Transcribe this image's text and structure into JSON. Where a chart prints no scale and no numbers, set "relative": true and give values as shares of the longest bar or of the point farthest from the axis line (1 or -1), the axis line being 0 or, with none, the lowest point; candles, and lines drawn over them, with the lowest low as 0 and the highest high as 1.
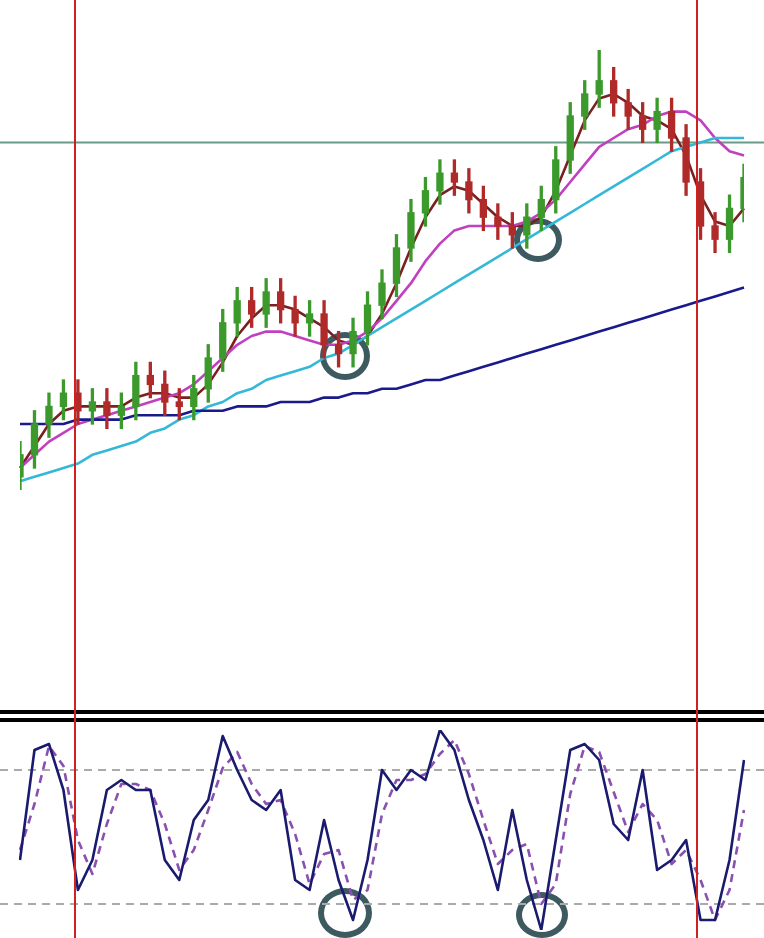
{
  "chart_data": [
    {
      "type": "candlestick",
      "relative": true,
      "categories": [
        null,
        null,
        null,
        null,
        null,
        null,
        null,
        null,
        null,
        null,
        null,
        null,
        null,
        null,
        null,
        null,
        null,
        null,
        null,
        null,
        null,
        null,
        null,
        null,
        null,
        null,
        null,
        null,
        null,
        null,
        null,
        null,
        null,
        null,
        null,
        null,
        null,
        null,
        null,
        null,
        null,
        null,
        null,
        null,
        null,
        null,
        null,
        null,
        null,
        null,
        null
      ],
      "ohlc": [
        [
          0.03,
          0.11,
          0.0,
          0.08
        ],
        [
          0.08,
          0.18,
          0.05,
          0.15
        ],
        [
          0.15,
          0.22,
          0.12,
          0.19
        ],
        [
          0.19,
          0.25,
          0.16,
          0.22
        ],
        [
          0.22,
          0.25,
          0.15,
          0.18
        ],
        [
          0.18,
          0.23,
          0.15,
          0.2
        ],
        [
          0.2,
          0.23,
          0.14,
          0.17
        ],
        [
          0.17,
          0.22,
          0.14,
          0.19
        ],
        [
          0.19,
          0.29,
          0.16,
          0.26
        ],
        [
          0.26,
          0.29,
          0.21,
          0.24
        ],
        [
          0.24,
          0.27,
          0.17,
          0.2
        ],
        [
          0.2,
          0.23,
          0.16,
          0.19
        ],
        [
          0.19,
          0.26,
          0.16,
          0.23
        ],
        [
          0.23,
          0.33,
          0.2,
          0.3
        ],
        [
          0.3,
          0.41,
          0.27,
          0.38
        ],
        [
          0.38,
          0.46,
          0.35,
          0.43
        ],
        [
          0.43,
          0.46,
          0.37,
          0.4
        ],
        [
          0.4,
          0.48,
          0.37,
          0.45
        ],
        [
          0.45,
          0.48,
          0.38,
          0.41
        ],
        [
          0.41,
          0.44,
          0.35,
          0.38
        ],
        [
          0.38,
          0.43,
          0.35,
          0.4
        ],
        [
          0.4,
          0.43,
          0.3,
          0.33
        ],
        [
          0.33,
          0.36,
          0.28,
          0.31
        ],
        [
          0.31,
          0.39,
          0.28,
          0.36
        ],
        [
          0.36,
          0.45,
          0.33,
          0.42
        ],
        [
          0.42,
          0.5,
          0.39,
          0.47
        ],
        [
          0.47,
          0.58,
          0.44,
          0.55
        ],
        [
          0.55,
          0.66,
          0.52,
          0.63
        ],
        [
          0.63,
          0.71,
          0.6,
          0.68
        ],
        [
          0.68,
          0.75,
          0.65,
          0.72
        ],
        [
          0.72,
          0.75,
          0.67,
          0.7
        ],
        [
          0.7,
          0.73,
          0.63,
          0.66
        ],
        [
          0.66,
          0.69,
          0.59,
          0.62
        ],
        [
          0.62,
          0.65,
          0.57,
          0.6
        ],
        [
          0.6,
          0.63,
          0.55,
          0.58
        ],
        [
          0.58,
          0.65,
          0.55,
          0.62
        ],
        [
          0.62,
          0.69,
          0.59,
          0.66
        ],
        [
          0.66,
          0.78,
          0.63,
          0.75
        ],
        [
          0.75,
          0.88,
          0.72,
          0.85
        ],
        [
          0.85,
          0.93,
          0.82,
          0.9
        ],
        [
          0.9,
          1.0,
          0.87,
          0.93
        ],
        [
          0.93,
          0.96,
          0.85,
          0.88
        ],
        [
          0.88,
          0.91,
          0.82,
          0.85
        ],
        [
          0.85,
          0.88,
          0.79,
          0.82
        ],
        [
          0.82,
          0.89,
          0.79,
          0.86
        ],
        [
          0.86,
          0.89,
          0.77,
          0.8
        ],
        [
          0.8,
          0.83,
          0.67,
          0.7
        ],
        [
          0.7,
          0.73,
          0.57,
          0.6
        ],
        [
          0.6,
          0.63,
          0.54,
          0.57
        ],
        [
          0.57,
          0.67,
          0.54,
          0.64
        ],
        [
          0.64,
          0.74,
          0.61,
          0.71
        ]
      ],
      "series": [
        {
          "type": "line",
          "color": "#1a1a8c",
          "values": [
            0.15,
            0.15,
            0.15,
            0.15,
            0.16,
            0.16,
            0.16,
            0.16,
            0.17,
            0.17,
            0.17,
            0.17,
            0.18,
            0.18,
            0.18,
            0.19,
            0.19,
            0.19,
            0.2,
            0.2,
            0.2,
            0.21,
            0.21,
            0.22,
            0.22,
            0.23,
            0.23,
            0.24,
            0.25,
            0.25,
            0.26,
            0.27,
            0.28,
            0.29,
            0.3,
            0.31,
            0.32,
            0.33,
            0.34,
            0.35,
            0.36,
            0.37,
            0.38,
            0.39,
            0.4,
            0.41,
            0.42,
            0.43,
            0.44,
            0.45,
            0.46
          ]
        },
        {
          "type": "line",
          "color": "#35b8d8",
          "values": [
            0.02,
            0.03,
            0.04,
            0.05,
            0.06,
            0.08,
            0.09,
            0.1,
            0.11,
            0.13,
            0.14,
            0.16,
            0.17,
            0.19,
            0.2,
            0.22,
            0.23,
            0.25,
            0.26,
            0.27,
            0.28,
            0.3,
            0.31,
            0.33,
            0.35,
            0.37,
            0.39,
            0.41,
            0.43,
            0.45,
            0.47,
            0.49,
            0.51,
            0.53,
            0.55,
            0.57,
            0.59,
            0.61,
            0.63,
            0.65,
            0.67,
            0.69,
            0.71,
            0.73,
            0.75,
            0.77,
            0.78,
            0.79,
            0.8,
            0.8,
            0.8
          ]
        },
        {
          "type": "line",
          "color": "#c040c0",
          "values": [
            0.05,
            0.08,
            0.11,
            0.13,
            0.15,
            0.16,
            0.17,
            0.18,
            0.19,
            0.2,
            0.21,
            0.22,
            0.24,
            0.27,
            0.3,
            0.33,
            0.35,
            0.36,
            0.36,
            0.35,
            0.34,
            0.33,
            0.33,
            0.34,
            0.36,
            0.39,
            0.43,
            0.47,
            0.52,
            0.56,
            0.59,
            0.6,
            0.6,
            0.6,
            0.6,
            0.61,
            0.63,
            0.66,
            0.7,
            0.74,
            0.78,
            0.8,
            0.82,
            0.83,
            0.85,
            0.86,
            0.86,
            0.84,
            0.8,
            0.77,
            0.76
          ]
        },
        {
          "type": "line",
          "color": "#7a2020",
          "values": [
            0.05,
            0.1,
            0.15,
            0.18,
            0.19,
            0.19,
            0.19,
            0.19,
            0.21,
            0.22,
            0.22,
            0.21,
            0.21,
            0.24,
            0.29,
            0.35,
            0.39,
            0.42,
            0.42,
            0.41,
            0.39,
            0.37,
            0.34,
            0.33,
            0.35,
            0.4,
            0.47,
            0.55,
            0.62,
            0.67,
            0.69,
            0.68,
            0.65,
            0.62,
            0.6,
            0.6,
            0.62,
            0.68,
            0.76,
            0.84,
            0.89,
            0.9,
            0.88,
            0.85,
            0.84,
            0.82,
            0.76,
            0.67,
            0.61,
            0.6,
            0.64
          ]
        }
      ],
      "ref_lines": [
        {
          "axis": "y",
          "value": 0.79,
          "color": "#6a9a8a"
        }
      ]
    },
    {
      "type": "line",
      "relative": true,
      "categories": [
        null,
        null,
        null,
        null,
        null,
        null,
        null,
        null,
        null,
        null,
        null,
        null,
        null,
        null,
        null,
        null,
        null,
        null,
        null,
        null,
        null,
        null,
        null,
        null,
        null,
        null,
        null,
        null,
        null,
        null,
        null,
        null,
        null,
        null,
        null,
        null,
        null,
        null,
        null,
        null,
        null,
        null,
        null,
        null,
        null,
        null,
        null,
        null,
        null,
        null,
        null
      ],
      "series": [
        {
          "color": "#1a1a6e",
          "line_style": "solid",
          "values": [
            0.35,
            0.9,
            0.93,
            0.7,
            0.2,
            0.35,
            0.7,
            0.75,
            0.7,
            0.7,
            0.35,
            0.25,
            0.55,
            0.65,
            0.97,
            0.8,
            0.65,
            0.6,
            0.7,
            0.25,
            0.2,
            0.55,
            0.25,
            0.05,
            0.35,
            0.8,
            0.7,
            0.8,
            0.75,
            1.0,
            0.9,
            0.65,
            0.45,
            0.2,
            0.6,
            0.25,
            0.0,
            0.45,
            0.9,
            0.93,
            0.85,
            0.53,
            0.45,
            0.8,
            0.3,
            0.35,
            0.45,
            0.05,
            0.05,
            0.35,
            0.85
          ]
        },
        {
          "color": "#8a50b0",
          "line_style": "dashed",
          "values": [
            0.4,
            0.63,
            0.92,
            0.82,
            0.45,
            0.28,
            0.53,
            0.73,
            0.73,
            0.7,
            0.53,
            0.3,
            0.4,
            0.6,
            0.81,
            0.89,
            0.73,
            0.63,
            0.65,
            0.48,
            0.23,
            0.38,
            0.4,
            0.15,
            0.2,
            0.58,
            0.75,
            0.75,
            0.78,
            0.88,
            0.95,
            0.78,
            0.55,
            0.33,
            0.4,
            0.43,
            0.13,
            0.23,
            0.68,
            0.92,
            0.89,
            0.69,
            0.49,
            0.63,
            0.55,
            0.33,
            0.4,
            0.25,
            0.05,
            0.2,
            0.6
          ]
        }
      ],
      "ref_lines": [
        {
          "axis": "y",
          "value": 0.8,
          "color": "#aaaaaa",
          "line_style": "dashed"
        },
        {
          "axis": "y",
          "value": 0.13,
          "color": "#aaaaaa",
          "line_style": "dashed"
        }
      ]
    }
  ]
}
